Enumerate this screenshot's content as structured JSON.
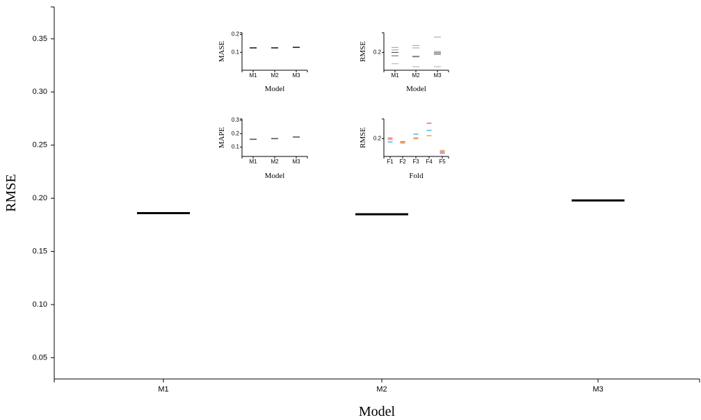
{
  "chart_data": [
    {
      "id": "main",
      "type": "scatter",
      "marker": "horizontal-line",
      "categories": [
        "M1",
        "M2",
        "M3"
      ],
      "values": [
        0.186,
        0.185,
        0.198
      ],
      "xlabel": "Model",
      "ylabel": "RMSE",
      "ylim": [
        0.03,
        0.38
      ],
      "yticks": [
        0.05,
        0.1,
        0.15,
        0.2,
        0.25,
        0.3,
        0.35
      ],
      "ytick_labels": [
        "0.05",
        "0.10",
        "0.15",
        "0.20",
        "0.25",
        "0.30",
        "0.35"
      ],
      "color": "#000000",
      "grid": false
    },
    {
      "id": "inset-mase",
      "type": "scatter",
      "marker": "horizontal-line",
      "categories": [
        "M1",
        "M2",
        "M3"
      ],
      "values": [
        0.125,
        0.125,
        0.128
      ],
      "xlabel": "Model",
      "ylabel": "MASE",
      "ylim": [
        0.0,
        0.21
      ],
      "yticks": [
        0.1,
        0.2
      ],
      "ytick_labels": [
        "0.1",
        "0.2"
      ],
      "color": "#000000"
    },
    {
      "id": "inset-rmse-model",
      "type": "scatter",
      "marker": "horizontal-line",
      "categories": [
        "M1",
        "M2",
        "M3"
      ],
      "series": [
        {
          "values": [
            0.225,
            0.235,
            0.278
          ]
        },
        {
          "values": [
            0.213,
            0.223,
            0.205
          ]
        },
        {
          "values": [
            0.2,
            0.18,
            0.198
          ]
        },
        {
          "values": [
            0.183,
            0.178,
            0.19
          ]
        },
        {
          "values": [
            0.143,
            0.128,
            0.128
          ]
        }
      ],
      "series_colors": [
        "#aaaaaa",
        "#aaaaaa",
        "#555555",
        "#777777",
        "#bbbbbb"
      ],
      "xlabel": "Model",
      "ylabel": "RMSE",
      "ylim": [
        0.11,
        0.3
      ],
      "yticks": [
        0.2
      ],
      "ytick_labels": [
        "0.2"
      ]
    },
    {
      "id": "inset-mape",
      "type": "scatter",
      "marker": "horizontal-line",
      "categories": [
        "M1",
        "M2",
        "M3"
      ],
      "values": [
        0.158,
        0.163,
        0.175
      ],
      "xlabel": "Model",
      "ylabel": "MAPE",
      "ylim": [
        0.03,
        0.31
      ],
      "yticks": [
        0.1,
        0.2,
        0.3
      ],
      "ytick_labels": [
        "0.1",
        "0.2",
        "0.3"
      ],
      "color": "#555555"
    },
    {
      "id": "inset-rmse-fold",
      "type": "scatter",
      "marker": "horizontal-line",
      "categories": [
        "F1",
        "F2",
        "F3",
        "F4",
        "F5"
      ],
      "series": [
        {
          "values": [
            0.183,
            0.178,
            0.223,
            0.242,
            0.126
          ]
        },
        {
          "values": [
            0.203,
            0.185,
            0.203,
            0.278,
            0.133
          ]
        },
        {
          "values": [
            0.196,
            0.18,
            0.2,
            0.215,
            0.14
          ]
        }
      ],
      "series_colors": [
        "#5bb5f0",
        "#f06b8a",
        "#f0a850"
      ],
      "xlabel": "Fold",
      "ylabel": "RMSE",
      "ylim": [
        0.11,
        0.3
      ],
      "yticks": [
        0.2
      ],
      "ytick_labels": [
        "0.2"
      ]
    }
  ]
}
